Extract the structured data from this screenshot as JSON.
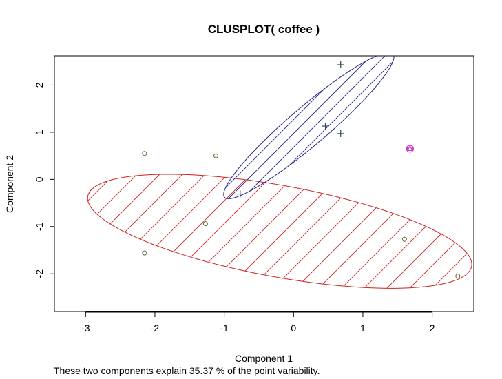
{
  "chart_data": {
    "type": "scatter",
    "title": "CLUSPLOT( coffee )",
    "xlabel": "Component 1",
    "ylabel": "Component 2",
    "xlim": [
      -3.45,
      2.6
    ],
    "ylim": [
      -2.8,
      2.62
    ],
    "xticks": [
      -3,
      -2,
      -1,
      0,
      1,
      2
    ],
    "yticks": [
      -2,
      -1,
      0,
      1,
      2
    ],
    "grid": false,
    "clusters": [
      {
        "marker": "circle",
        "point_color": "#556b2f",
        "ellipse_color": "#cc2222",
        "ellipse": {
          "center": [
            -0.2,
            -1.1
          ],
          "semi_major": 2.87,
          "semi_minor": 0.95,
          "angle_deg": -16
        },
        "points": [
          [
            -2.15,
            0.55
          ],
          [
            -1.12,
            0.5
          ],
          [
            -1.27,
            -0.94
          ],
          [
            -2.15,
            -1.56
          ],
          [
            1.6,
            -1.27
          ],
          [
            2.37,
            -2.05
          ]
        ]
      },
      {
        "marker": "plus",
        "point_color": "#1f4f4f",
        "ellipse_color": "#22228b",
        "ellipse": {
          "center": [
            0.22,
            1.14
          ],
          "semi_major": 1.95,
          "semi_minor": 0.33,
          "angle_deg": 52
        },
        "points": [
          [
            0.68,
            2.43
          ],
          [
            0.46,
            1.13
          ],
          [
            0.68,
            0.97
          ],
          [
            -0.77,
            -0.31
          ]
        ]
      },
      {
        "marker": "triangle",
        "point_color": "#cc33cc",
        "ellipse_color": "#cc33cc",
        "ellipse": {
          "center": [
            1.68,
            0.65
          ],
          "semi_major": 0.04,
          "semi_minor": 0.04,
          "angle_deg": 0
        },
        "points": [
          [
            1.68,
            0.65
          ]
        ]
      }
    ],
    "footnote": "These two components explain 35.37 % of the point variability."
  }
}
